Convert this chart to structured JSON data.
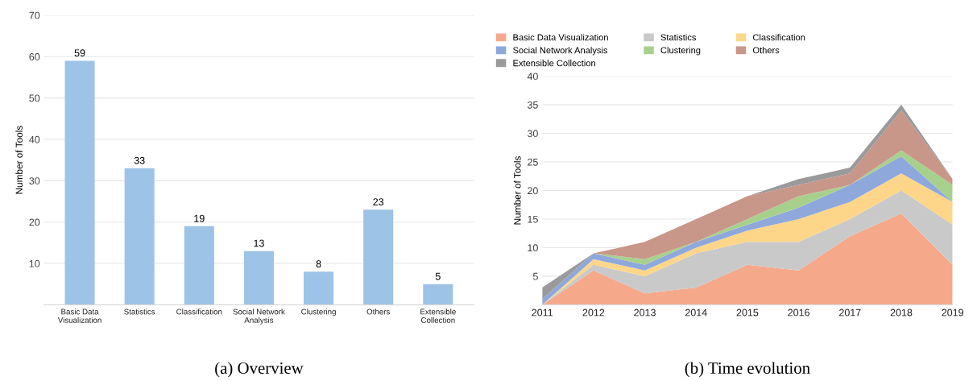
{
  "chart_data": [
    {
      "type": "bar",
      "ylabel": "Number of Tools",
      "categories": [
        "Basic Data\nVisualization",
        "Statistics",
        "Classification",
        "Social Network\nAnalysis",
        "Clustering",
        "Others",
        "Extensible\nCollection"
      ],
      "values": [
        59,
        33,
        19,
        13,
        8,
        23,
        5
      ],
      "color": "#9dc3e6",
      "ylim": [
        0,
        70
      ],
      "yticks": [
        10,
        20,
        30,
        40,
        50,
        60,
        70
      ],
      "grid": "y",
      "data_labels": true,
      "annotations": [
        "(a) Overview"
      ]
    },
    {
      "type": "area",
      "stacked": true,
      "ylabel": "Number of Tools",
      "x": [
        2011,
        2012,
        2013,
        2014,
        2015,
        2016,
        2017,
        2018,
        2019
      ],
      "xlim": [
        2011,
        2019
      ],
      "xticks": [
        2011,
        2012,
        2013,
        2014,
        2015,
        2016,
        2017,
        2018,
        2019
      ],
      "ylim": [
        0,
        40
      ],
      "yticks": [
        5,
        10,
        15,
        20,
        25,
        30,
        35,
        40
      ],
      "grid": "y",
      "legend": "top",
      "annotations": [
        "(b) Time evolution"
      ],
      "series": [
        {
          "name": "Basic Data Visualization",
          "color": "#f5a98a",
          "values": [
            0,
            6,
            2,
            3,
            7,
            6,
            12,
            16,
            7
          ]
        },
        {
          "name": "Statistics",
          "color": "#c9c9c9",
          "values": [
            0,
            1,
            3,
            6,
            4,
            5,
            3,
            4,
            7
          ]
        },
        {
          "name": "Classification",
          "color": "#fdd68a",
          "values": [
            0,
            1,
            1,
            1,
            2,
            4,
            3,
            3,
            4
          ]
        },
        {
          "name": "Social Network Analysis",
          "color": "#8fa8dc",
          "values": [
            1,
            1,
            1,
            1,
            1,
            2,
            3,
            3,
            0
          ]
        },
        {
          "name": "Clustering",
          "color": "#a8d08d",
          "values": [
            0,
            0,
            1,
            0,
            1,
            2,
            0,
            1,
            3
          ]
        },
        {
          "name": "Others",
          "color": "#c9968a",
          "values": [
            0,
            0,
            3,
            4,
            4,
            2,
            2,
            7,
            1
          ]
        },
        {
          "name": "Extensible Collection",
          "color": "#9a9a9a",
          "values": [
            2,
            0,
            0,
            0,
            0,
            1,
            1,
            1,
            0
          ]
        }
      ]
    }
  ]
}
